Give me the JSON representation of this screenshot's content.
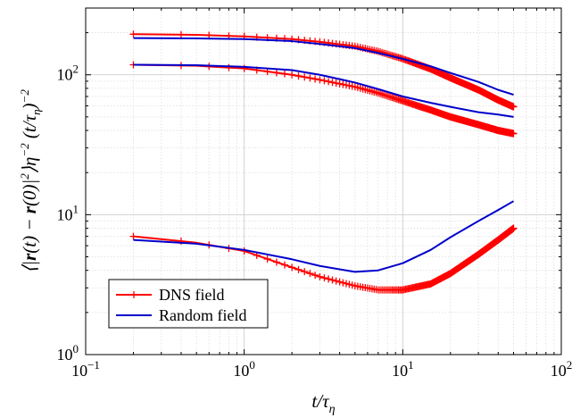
{
  "chart_data": {
    "type": "line",
    "xscale": "log",
    "yscale": "log",
    "xlim": [
      0.1,
      100
    ],
    "ylim": [
      1,
      300
    ],
    "grid": true,
    "legend_position": "bottom-left",
    "xlabel_parts": [
      {
        "t": "t/τ",
        "sub": false
      },
      {
        "t": "η",
        "sub": true
      }
    ],
    "ylabel_parts": [
      {
        "t": "⟨|",
        "style": "normal"
      },
      {
        "t": "r",
        "style": "bolditalic"
      },
      {
        "t": "(t) − ",
        "style": "normal"
      },
      {
        "t": "r",
        "style": "bolditalic"
      },
      {
        "t": "(0)|",
        "style": "normal"
      },
      {
        "t": "2",
        "style": "sup"
      },
      {
        "t": "⟩η",
        "style": "normal"
      },
      {
        "t": "−2",
        "style": "sup"
      },
      {
        "t": " (t/τ",
        "style": "normal"
      },
      {
        "t": "η",
        "style": "sub"
      },
      {
        "t": ")",
        "style": "normal"
      },
      {
        "t": "−2",
        "style": "sup"
      }
    ],
    "x_ticks": [
      {
        "value": 0.1,
        "base": "10",
        "exp": "−1"
      },
      {
        "value": 1,
        "base": "10",
        "exp": "0"
      },
      {
        "value": 10,
        "base": "10",
        "exp": "1"
      },
      {
        "value": 100,
        "base": "10",
        "exp": "2"
      }
    ],
    "y_ticks": [
      {
        "value": 1,
        "base": "10",
        "exp": "0"
      },
      {
        "value": 10,
        "base": "10",
        "exp": "1"
      },
      {
        "value": 100,
        "base": "10",
        "exp": "2"
      }
    ],
    "series": [
      {
        "name": "DNS field",
        "color": "#ff0000",
        "marker": "plus",
        "curves": [
          {
            "x": [
              0.2,
              0.5,
              1,
              2,
              3,
              5,
              7,
              10,
              15,
              20,
              30,
              40,
              50
            ],
            "y": [
              195,
              193,
              188,
              180,
              172,
              160,
              147,
              130,
              110,
              95,
              78,
              66,
              59
            ]
          },
          {
            "x": [
              0.2,
              0.5,
              1,
              2,
              3,
              5,
              7,
              10,
              15,
              20,
              30,
              40,
              50
            ],
            "y": [
              118,
              116,
              111,
              100,
              92,
              82,
              74,
              65,
              56,
              50,
              44,
              40,
              38
            ]
          },
          {
            "x": [
              0.2,
              0.5,
              1,
              2,
              3,
              5,
              7,
              10,
              15,
              20,
              30,
              40,
              50
            ],
            "y": [
              7.0,
              6.3,
              5.5,
              4.2,
              3.6,
              3.1,
              2.9,
              2.9,
              3.2,
              3.8,
              5.2,
              6.6,
              8.0
            ]
          }
        ]
      },
      {
        "name": "Random field",
        "color": "#0000cc",
        "marker": "none",
        "curves": [
          {
            "x": [
              0.2,
              0.5,
              1,
              2,
              3,
              5,
              7,
              10,
              15,
              20,
              30,
              40,
              50
            ],
            "y": [
              183,
              182,
              180,
              174,
              166,
              155,
              143,
              130,
              115,
              103,
              89,
              78,
              72
            ]
          },
          {
            "x": [
              0.2,
              0.5,
              1,
              2,
              3,
              5,
              7,
              10,
              15,
              20,
              30,
              40,
              50
            ],
            "y": [
              118,
              117,
              114,
              108,
              100,
              88,
              79,
              70,
              63,
              59,
              54,
              52,
              50
            ]
          },
          {
            "x": [
              0.2,
              0.5,
              1,
              2,
              3,
              5,
              7,
              10,
              15,
              20,
              30,
              40,
              50
            ],
            "y": [
              6.6,
              6.2,
              5.6,
              4.8,
              4.3,
              3.9,
              4.0,
              4.5,
              5.6,
              6.9,
              9.0,
              10.8,
              12.5
            ]
          }
        ]
      }
    ]
  }
}
